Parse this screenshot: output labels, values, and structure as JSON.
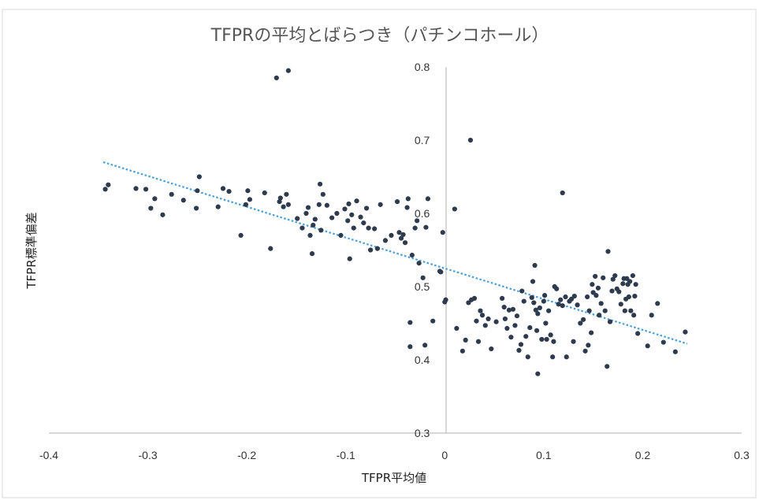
{
  "chart_data": {
    "type": "scatter",
    "title": "TFPRの平均とばらつき（パチンコホール）",
    "xlabel": "TFPR平均値",
    "ylabel": "TFPR標準偏差",
    "xlim": [
      -0.4,
      0.3
    ],
    "ylim": [
      0.3,
      0.8
    ],
    "x_ticks": [
      "-0.4",
      "-0.3",
      "-0.2",
      "-0.1",
      "0",
      "0.1",
      "0.2",
      "0.3"
    ],
    "y_ticks": [
      "0.3",
      "0.4",
      "0.5",
      "0.6",
      "0.7",
      "0.8"
    ],
    "grid": false,
    "legend": "none",
    "colors": {
      "points": "#2e3b4e",
      "trendline": "#4a9fd8",
      "axis": "#bfbfbf",
      "border": "#d9d9d9"
    },
    "series": [
      {
        "type": "scatter",
        "points": [
          [
            -0.17,
            0.785
          ],
          [
            -0.158,
            0.795
          ],
          [
            0.026,
            0.7
          ],
          [
            0.119,
            0.628
          ],
          [
            -0.126,
            0.64
          ],
          [
            -0.343,
            0.633
          ],
          [
            -0.34,
            0.639
          ],
          [
            -0.312,
            0.634
          ],
          [
            -0.302,
            0.633
          ],
          [
            -0.297,
            0.607
          ],
          [
            -0.293,
            0.62
          ],
          [
            -0.285,
            0.598
          ],
          [
            -0.276,
            0.626
          ],
          [
            -0.264,
            0.618
          ],
          [
            -0.251,
            0.607
          ],
          [
            -0.25,
            0.631
          ],
          [
            -0.248,
            0.65
          ],
          [
            -0.229,
            0.609
          ],
          [
            -0.224,
            0.634
          ],
          [
            -0.218,
            0.63
          ],
          [
            -0.206,
            0.57
          ],
          [
            -0.201,
            0.612
          ],
          [
            -0.199,
            0.631
          ],
          [
            -0.197,
            0.619
          ],
          [
            -0.182,
            0.628
          ],
          [
            -0.176,
            0.552
          ],
          [
            -0.167,
            0.616
          ],
          [
            -0.166,
            0.621
          ],
          [
            -0.163,
            0.609
          ],
          [
            -0.16,
            0.626
          ],
          [
            -0.158,
            0.612
          ],
          [
            -0.149,
            0.593
          ],
          [
            -0.144,
            0.58
          ],
          [
            -0.14,
            0.6
          ],
          [
            -0.138,
            0.608
          ],
          [
            -0.136,
            0.57
          ],
          [
            -0.134,
            0.545
          ],
          [
            -0.133,
            0.584
          ],
          [
            -0.131,
            0.592
          ],
          [
            -0.127,
            0.612
          ],
          [
            -0.125,
            0.577
          ],
          [
            -0.123,
            0.626
          ],
          [
            -0.119,
            0.611
          ],
          [
            -0.114,
            0.594
          ],
          [
            -0.109,
            0.6
          ],
          [
            -0.105,
            0.57
          ],
          [
            -0.101,
            0.606
          ],
          [
            -0.098,
            0.59
          ],
          [
            -0.097,
            0.613
          ],
          [
            -0.096,
            0.538
          ],
          [
            -0.094,
            0.598
          ],
          [
            -0.092,
            0.58
          ],
          [
            -0.089,
            0.617
          ],
          [
            -0.085,
            0.595
          ],
          [
            -0.082,
            0.587
          ],
          [
            -0.079,
            0.607
          ],
          [
            -0.077,
            0.58
          ],
          [
            -0.075,
            0.55
          ],
          [
            -0.071,
            0.579
          ],
          [
            -0.068,
            0.552
          ],
          [
            -0.065,
            0.612
          ],
          [
            -0.06,
            0.563
          ],
          [
            -0.054,
            0.57
          ],
          [
            -0.048,
            0.616
          ],
          [
            -0.046,
            0.574
          ],
          [
            -0.044,
            0.566
          ],
          [
            -0.042,
            0.571
          ],
          [
            -0.04,
            0.56
          ],
          [
            -0.038,
            0.608
          ],
          [
            -0.037,
            0.62
          ],
          [
            -0.035,
            0.451
          ],
          [
            -0.035,
            0.418
          ],
          [
            -0.033,
            0.543
          ],
          [
            -0.03,
            0.58
          ],
          [
            -0.028,
            0.59
          ],
          [
            -0.026,
            0.532
          ],
          [
            -0.022,
            0.512
          ],
          [
            -0.02,
            0.42
          ],
          [
            -0.019,
            0.581
          ],
          [
            -0.017,
            0.62
          ],
          [
            -0.012,
            0.453
          ],
          [
            -0.005,
            0.521
          ],
          [
            -0.004,
            0.52
          ],
          [
            -0.002,
            0.574
          ],
          [
            0.0,
            0.479
          ],
          [
            0.001,
            0.482
          ],
          [
            0.01,
            0.606
          ],
          [
            0.012,
            0.443
          ],
          [
            0.018,
            0.412
          ],
          [
            0.021,
            0.427
          ],
          [
            0.024,
            0.478
          ],
          [
            0.027,
            0.482
          ],
          [
            0.03,
            0.484
          ],
          [
            0.032,
            0.453
          ],
          [
            0.034,
            0.425
          ],
          [
            0.036,
            0.467
          ],
          [
            0.038,
            0.461
          ],
          [
            0.041,
            0.447
          ],
          [
            0.044,
            0.456
          ],
          [
            0.047,
            0.415
          ],
          [
            0.052,
            0.452
          ],
          [
            0.058,
            0.484
          ],
          [
            0.06,
            0.472
          ],
          [
            0.061,
            0.456
          ],
          [
            0.063,
            0.443
          ],
          [
            0.065,
            0.468
          ],
          [
            0.067,
            0.431
          ],
          [
            0.069,
            0.469
          ],
          [
            0.071,
            0.447
          ],
          [
            0.073,
            0.46
          ],
          [
            0.075,
            0.413
          ],
          [
            0.077,
            0.421
          ],
          [
            0.078,
            0.494
          ],
          [
            0.08,
            0.48
          ],
          [
            0.082,
            0.432
          ],
          [
            0.084,
            0.404
          ],
          [
            0.086,
            0.444
          ],
          [
            0.088,
            0.485
          ],
          [
            0.089,
            0.507
          ],
          [
            0.09,
            0.478
          ],
          [
            0.091,
            0.529
          ],
          [
            0.092,
            0.468
          ],
          [
            0.093,
            0.44
          ],
          [
            0.094,
            0.463
          ],
          [
            0.094,
            0.381
          ],
          [
            0.096,
            0.471
          ],
          [
            0.098,
            0.428
          ],
          [
            0.1,
            0.48
          ],
          [
            0.101,
            0.488
          ],
          [
            0.102,
            0.45
          ],
          [
            0.103,
            0.428
          ],
          [
            0.105,
            0.467
          ],
          [
            0.107,
            0.434
          ],
          [
            0.109,
            0.404
          ],
          [
            0.11,
            0.425
          ],
          [
            0.111,
            0.5
          ],
          [
            0.113,
            0.497
          ],
          [
            0.115,
            0.476
          ],
          [
            0.117,
            0.482
          ],
          [
            0.119,
            0.474
          ],
          [
            0.122,
            0.486
          ],
          [
            0.123,
            0.404
          ],
          [
            0.126,
            0.48
          ],
          [
            0.128,
            0.483
          ],
          [
            0.13,
            0.425
          ],
          [
            0.131,
            0.487
          ],
          [
            0.134,
            0.475
          ],
          [
            0.137,
            0.45
          ],
          [
            0.14,
            0.455
          ],
          [
            0.142,
            0.412
          ],
          [
            0.144,
            0.486
          ],
          [
            0.145,
            0.42
          ],
          [
            0.146,
            0.467
          ],
          [
            0.148,
            0.437
          ],
          [
            0.149,
            0.503
          ],
          [
            0.15,
            0.492
          ],
          [
            0.152,
            0.514
          ],
          [
            0.153,
            0.488
          ],
          [
            0.155,
            0.498
          ],
          [
            0.156,
            0.461
          ],
          [
            0.158,
            0.477
          ],
          [
            0.16,
            0.512
          ],
          [
            0.162,
            0.467
          ],
          [
            0.164,
            0.391
          ],
          [
            0.165,
            0.548
          ],
          [
            0.167,
            0.452
          ],
          [
            0.169,
            0.494
          ],
          [
            0.17,
            0.51
          ],
          [
            0.172,
            0.515
          ],
          [
            0.174,
            0.497
          ],
          [
            0.176,
            0.493
          ],
          [
            0.178,
            0.476
          ],
          [
            0.18,
            0.504
          ],
          [
            0.181,
            0.511
          ],
          [
            0.182,
            0.467
          ],
          [
            0.183,
            0.483
          ],
          [
            0.184,
            0.511
          ],
          [
            0.185,
            0.503
          ],
          [
            0.186,
            0.486
          ],
          [
            0.187,
            0.507
          ],
          [
            0.188,
            0.467
          ],
          [
            0.19,
            0.515
          ],
          [
            0.191,
            0.461
          ],
          [
            0.192,
            0.487
          ],
          [
            0.193,
            0.503
          ],
          [
            0.195,
            0.436
          ],
          [
            0.205,
            0.419
          ],
          [
            0.209,
            0.461
          ],
          [
            0.215,
            0.477
          ],
          [
            0.221,
            0.424
          ],
          [
            0.233,
            0.411
          ],
          [
            0.243,
            0.438
          ]
        ]
      },
      {
        "type": "linear-trendline",
        "style": "dotted",
        "points": [
          [
            -0.345,
            0.67
          ],
          [
            0.245,
            0.422
          ]
        ]
      }
    ]
  }
}
